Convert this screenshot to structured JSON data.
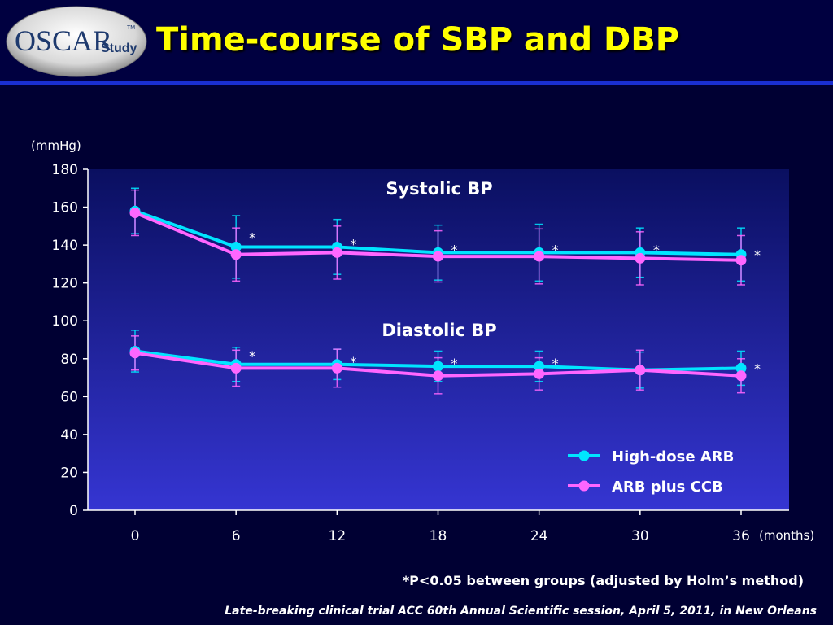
{
  "slide": {
    "title": "Time-course of SBP and DBP",
    "logo_main": "OSCAR",
    "logo_sub": "Study",
    "logo_tm": "TM",
    "footnote": "*P<0.05 between groups (adjusted by Holm’s method)",
    "source": "Late-breaking clinical trial  ACC 60th Annual Scientific  session, April 5, 2011, in New Orleans"
  },
  "colors": {
    "background": "#000033",
    "title": "#ffff00",
    "plot_top": "#0a0f60",
    "plot_bottom": "#3535d2",
    "high_dose_arb": "#00e5ff",
    "arb_plus_ccb": "#ff66ff",
    "text": "#ffffff"
  },
  "chart_data": {
    "type": "line",
    "ylabel": "(mmHg)",
    "xlabel": "(months)",
    "ylim": [
      0,
      180
    ],
    "yticks": [
      0,
      20,
      40,
      60,
      80,
      100,
      120,
      140,
      160,
      180
    ],
    "x": [
      0,
      6,
      12,
      18,
      24,
      30,
      36
    ],
    "grid": false,
    "legend_position": "bottom-right",
    "panel_labels": [
      "Systolic BP",
      "Diastolic BP"
    ],
    "significance_marker": "*",
    "sbp_significant_at": [
      6,
      12,
      18,
      24,
      30,
      36
    ],
    "dbp_significant_at": [
      6,
      12,
      18,
      24,
      36
    ],
    "series": [
      {
        "name": "High-dose ARB",
        "measure": "SBP",
        "values": [
          158,
          139,
          139,
          136,
          136,
          136,
          135
        ],
        "errors": [
          12,
          16.5,
          14.5,
          14.5,
          15,
          13,
          14
        ]
      },
      {
        "name": "ARB plus CCB",
        "measure": "SBP",
        "values": [
          157,
          135,
          136,
          134,
          134,
          133,
          132
        ],
        "errors": [
          12,
          14,
          14,
          13.5,
          14.5,
          14,
          13
        ]
      },
      {
        "name": "High-dose ARB",
        "measure": "DBP",
        "values": [
          84,
          77,
          77,
          76,
          76,
          74,
          75
        ],
        "errors": [
          11,
          9,
          8,
          8,
          8,
          9.5,
          9
        ]
      },
      {
        "name": "ARB plus CCB",
        "measure": "DBP",
        "values": [
          83,
          75,
          75,
          71,
          72,
          74,
          71
        ],
        "errors": [
          9,
          9.5,
          10,
          9.5,
          8.5,
          10.5,
          9
        ]
      }
    ]
  }
}
